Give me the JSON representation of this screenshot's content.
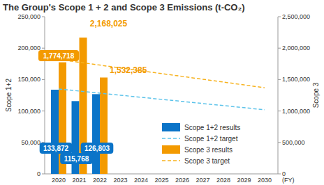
{
  "chart_data": {
    "type": "bar",
    "title": "The Group's Scope 1 + 2 and Scope 3 Emissions (t-CO₂)",
    "x_label": "(FY)",
    "y_label": "Scope 1+2",
    "y2_label": "Scope 3",
    "categories": [
      "2020",
      "2021",
      "2022",
      "2023",
      "2024",
      "2025",
      "2026",
      "2027",
      "2028",
      "2029",
      "2030"
    ],
    "ylim": [
      0,
      250000
    ],
    "yticks": [
      0,
      {
        "value": 50000,
        "label": "50,000"
      },
      {
        "value": 100000,
        "label": "100,000"
      },
      {
        "value": 150000,
        "label": "150,000"
      },
      {
        "value": 200000,
        "label": "200,000"
      },
      {
        "value": 250000,
        "label": "250,000"
      }
    ],
    "y2lim": [
      0,
      2500000
    ],
    "y2ticks": [
      0,
      {
        "value": 500000,
        "label": "500,000"
      },
      {
        "value": 1000000,
        "label": "1,000,000"
      },
      {
        "value": 1500000,
        "label": "1,500,000"
      },
      {
        "value": 2000000,
        "label": "2,000,000"
      },
      {
        "value": 2500000,
        "label": "2,500,000"
      }
    ],
    "grid": false,
    "legend": "lower right",
    "series": [
      {
        "name": "Scope 1+2 results",
        "type": "bar",
        "color": "#0b74c8",
        "data_labels": true,
        "values": [
          133872,
          115768,
          126803,
          null,
          null,
          null,
          null,
          null,
          null,
          null,
          null
        ],
        "value_labels": [
          "133,872",
          "115,768",
          "126,803",
          null,
          null,
          null,
          null,
          null,
          null,
          null,
          null
        ]
      },
      {
        "name": "Scope 1+2 target",
        "type": "line",
        "color": "#5cc3ea",
        "line_style": "dashed",
        "values": [
          135000,
          131700,
          128400,
          125100,
          121800,
          118500,
          115200,
          111900,
          108600,
          105300,
          102000
        ]
      },
      {
        "name": "Scope 3 results",
        "type": "bar",
        "color": "#f39a00",
        "axis": "y2",
        "data_labels": true,
        "values": [
          1774718,
          2168025,
          1532385,
          null,
          null,
          null,
          null,
          null,
          null,
          null,
          null
        ],
        "value_labels": [
          "1,774,718",
          "2,168,025",
          "1,532,385",
          null,
          null,
          null,
          null,
          null,
          null,
          null,
          null
        ]
      },
      {
        "name": "Scope 3 target",
        "type": "line",
        "color": "#f7b21e",
        "line_style": "dashed",
        "axis": "y2",
        "values": [
          1820000,
          1775000,
          1730000,
          1685000,
          1640000,
          1595000,
          1550000,
          1505000,
          1460000,
          1415000,
          1370000
        ]
      }
    ]
  }
}
